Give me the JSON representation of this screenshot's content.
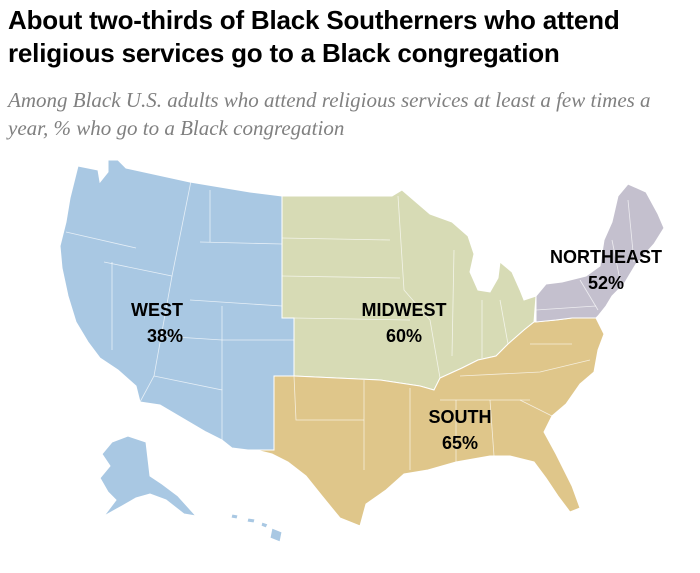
{
  "title": "About two-thirds of Black Southerners who attend religious services go to a Black congregation",
  "subtitle": "Among Black U.S. adults who attend religious services at least a few times a year, % who go to a Black congregation",
  "colors": {
    "west": "#a9c8e3",
    "midwest": "#d7dbb5",
    "south": "#dfc68a",
    "northeast": "#c4c0ce"
  },
  "regions": [
    {
      "key": "west",
      "name": "WEST",
      "value": "38%"
    },
    {
      "key": "midwest",
      "name": "MIDWEST",
      "value": "60%"
    },
    {
      "key": "south",
      "name": "SOUTH",
      "value": "65%"
    },
    {
      "key": "northeast",
      "name": "NORTHEAST",
      "value": "52%"
    }
  ]
}
